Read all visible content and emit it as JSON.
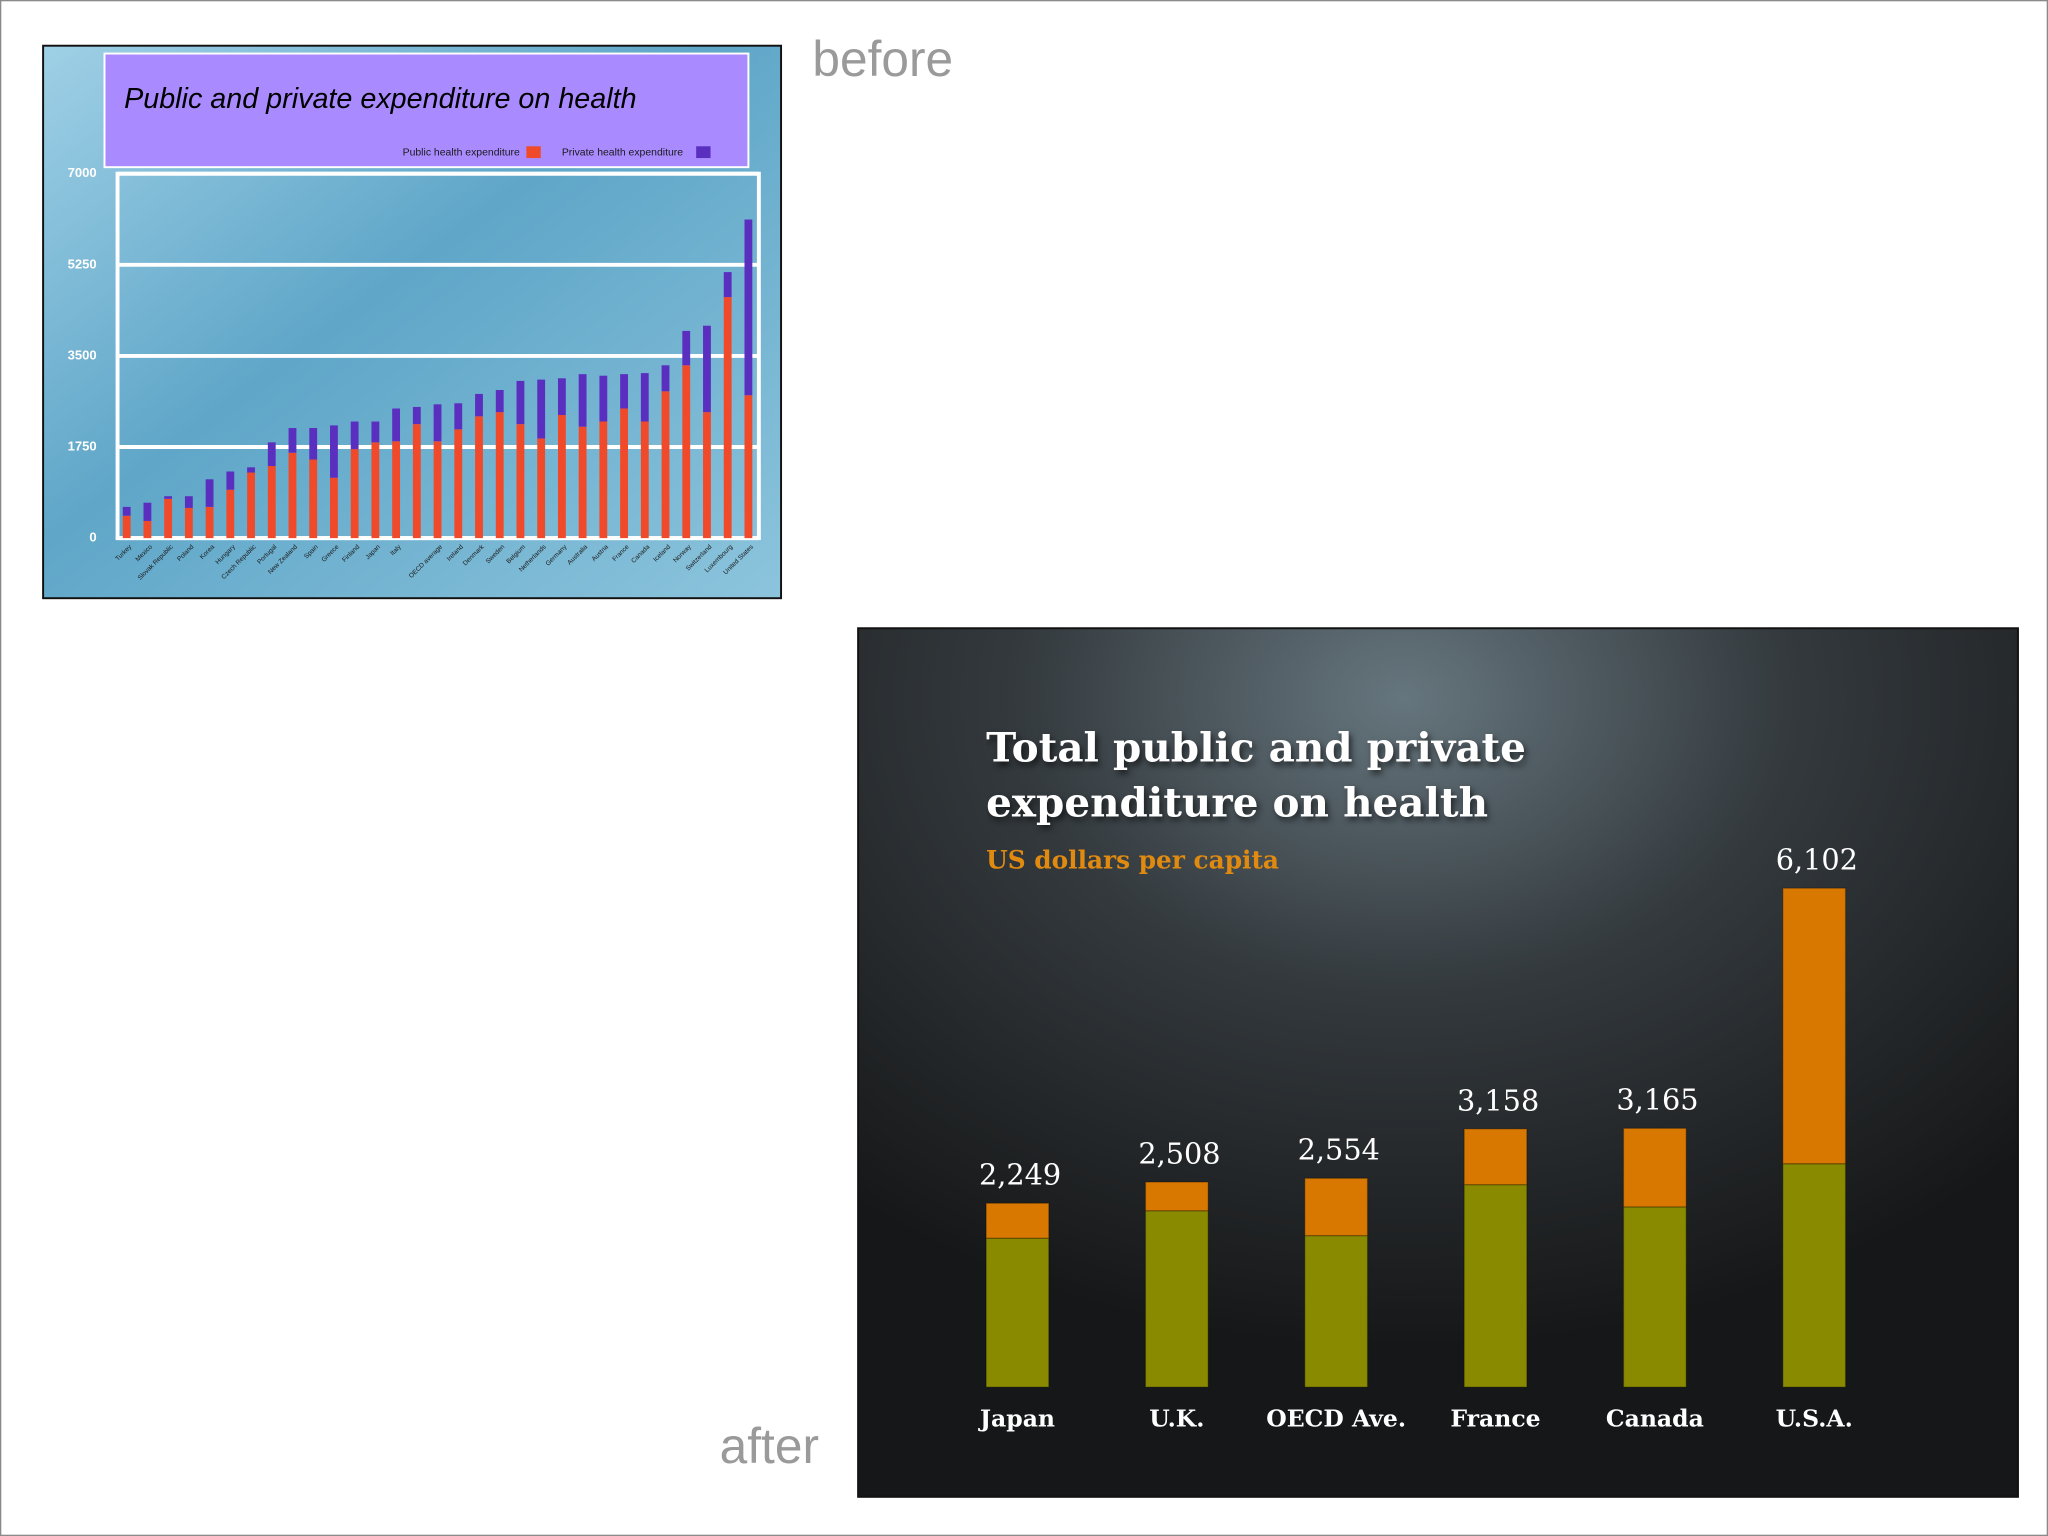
{
  "before_label": "before",
  "after_label": "after",
  "chart_data": [
    {
      "type": "bar",
      "stacked": true,
      "title": "Public and private expenditure on health",
      "categories": [
        "Turkey",
        "Mexico",
        "Slovak Republic",
        "Poland",
        "Korea",
        "Hungary",
        "Czech Republic",
        "Portugal",
        "New Zealand",
        "Spain",
        "Greece",
        "Finland",
        "Japan",
        "Italy",
        null,
        "OECD average",
        "Ireland",
        "Denmark",
        "Sweden",
        "Belgium",
        "Netherlands",
        "Germany",
        "Australia",
        "Austria",
        "France",
        "Canada",
        "Iceland",
        "Norway",
        "Switzerland",
        "Luxembourg",
        "United States"
      ],
      "series": [
        {
          "name": "Public health expenditure",
          "color": "#f04a2a",
          "values": [
            430,
            330,
            755,
            580,
            600,
            930,
            1260,
            1385,
            1640,
            1510,
            1160,
            1710,
            1840,
            1860,
            2190,
            1860,
            2090,
            2340,
            2420,
            2190,
            1915,
            2365,
            2140,
            2240,
            2490,
            2240,
            2820,
            3320,
            2420,
            4630,
            2745
          ]
        },
        {
          "name": "Private health expenditure",
          "color": "#5a2fc0",
          "values": [
            170,
            350,
            50,
            225,
            530,
            350,
            100,
            455,
            475,
            605,
            1005,
            530,
            400,
            630,
            330,
            710,
            500,
            430,
            425,
            830,
            1130,
            705,
            1010,
            880,
            660,
            930,
            500,
            660,
            1660,
            480,
            3375
          ]
        }
      ],
      "ylim": [
        0,
        7000
      ],
      "yticks": [
        0,
        1750,
        3500,
        5250,
        7000
      ],
      "grid": true
    },
    {
      "type": "bar",
      "stacked": true,
      "title": "Total public and private expenditure on health",
      "subtitle": "US dollars per capita",
      "categories": [
        "Japan",
        "U.K.",
        "OECD Ave.",
        "France",
        "Canada",
        "U.S.A."
      ],
      "series": [
        {
          "color": "#8a8a00",
          "values": [
            1821,
            2157,
            1853,
            2476,
            2204,
            2732
          ]
        },
        {
          "color": "#d97800",
          "values": [
            428,
            351,
            701,
            682,
            961,
            3370
          ]
        }
      ],
      "totals": [
        2249,
        2508,
        2554,
        3158,
        3165,
        6102
      ],
      "value_labels": [
        "2,249",
        "2,508",
        "2,554",
        "3,158",
        "3,165",
        "6,102"
      ]
    }
  ]
}
